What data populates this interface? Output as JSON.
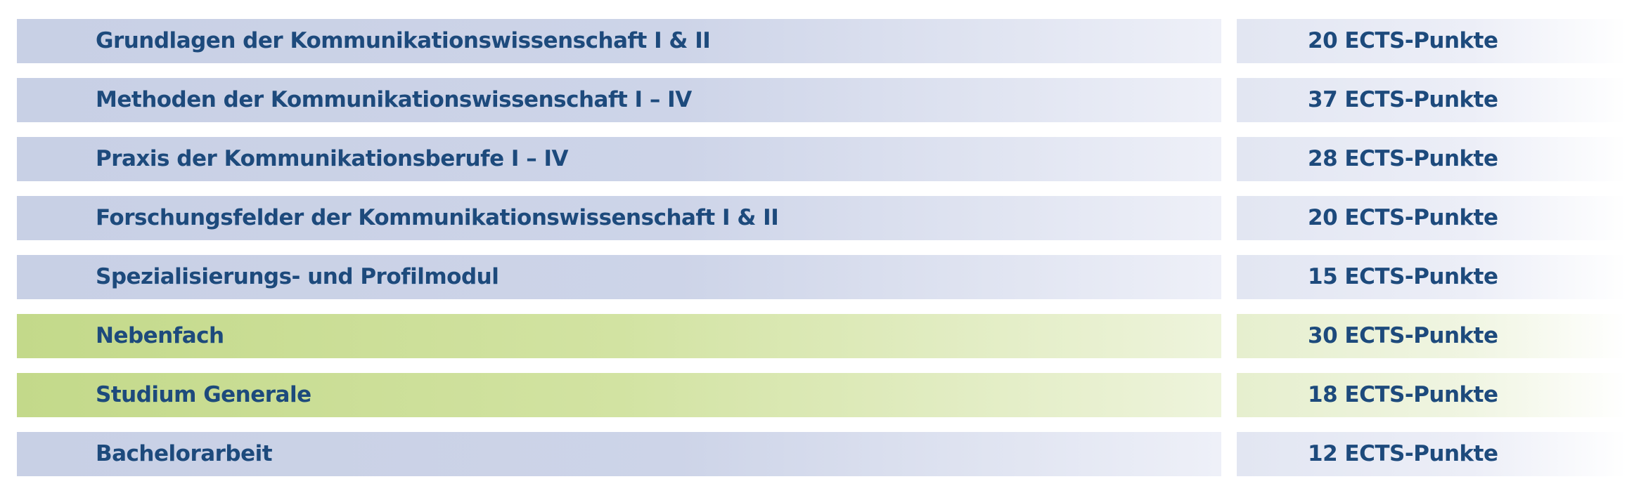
{
  "table": {
    "rows": [
      [
        "Grundlagen der Kommunikationswissenschaft I & II",
        "20 ECTS-Punkte"
      ],
      [
        "Methoden der Kommunikationswissenschaft I – IV",
        "37 ECTS-Punkte"
      ],
      [
        "Praxis der Kommunikationsberufe I – IV",
        "28 ECTS-Punkte"
      ],
      [
        "Forschungsfelder der Kommunikationswissenschaft I & II",
        "20 ECTS-Punkte"
      ],
      [
        "Spezialisierungs- und Profilmodul",
        "15 ECTS-Punkte"
      ],
      [
        "Nebenfach",
        "30 ECTS-Punkte"
      ],
      [
        "Studium Generale",
        "18 ECTS-Punkte"
      ],
      [
        "Bachelorarbeit",
        "12 ECTS-Punkte"
      ]
    ]
  }
}
